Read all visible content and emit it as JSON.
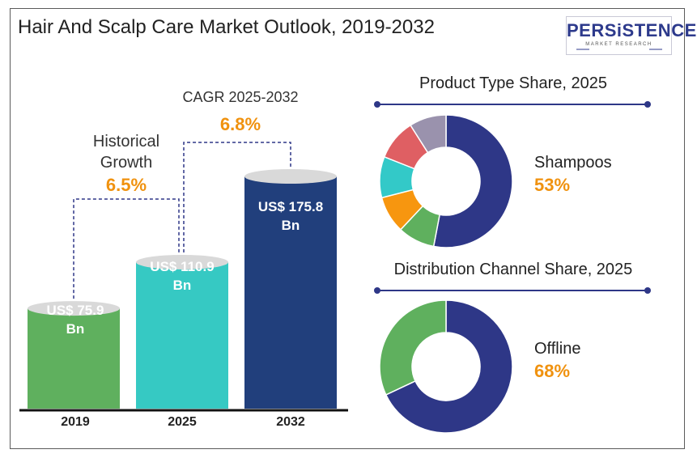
{
  "title": "Hair And Scalp Care Market Outlook, 2019-2032",
  "logo": {
    "main": "PERSiSTENCE",
    "sub": "MARKET RESEARCH"
  },
  "colors": {
    "accent": "#f0920f",
    "navy": "#2e3787",
    "green": "#5fb05e",
    "teal": "#36c9c3",
    "dark_blue": "#213f7c"
  },
  "chart_data": [
    {
      "type": "bar",
      "categories": [
        "2019",
        "2025",
        "2032"
      ],
      "values": [
        75.9,
        110.9,
        175.8
      ],
      "value_labels": [
        "US$ 75.9 Bn",
        "US$ 110.9 Bn",
        "US$ 175.8 Bn"
      ],
      "value_label_lines": [
        [
          "US$ 75.9",
          "Bn"
        ],
        [
          "US$ 110.9",
          "Bn"
        ],
        [
          "US$ 175.8",
          "Bn"
        ]
      ],
      "annotations": {
        "historical": {
          "label_lines": [
            "Historical",
            "Growth"
          ],
          "value": "6.5%"
        },
        "cagr": {
          "label": "CAGR 2025-2032",
          "value": "6.8%"
        }
      }
    },
    {
      "type": "pie",
      "title": "Product Type Share, 2025",
      "highlight": {
        "label": "Shampoos",
        "value": "53%"
      },
      "slices": [
        {
          "value": 53,
          "color": "#2e3787"
        },
        {
          "value": 9,
          "color": "#5fb05e"
        },
        {
          "value": 9,
          "color": "#f7960f"
        },
        {
          "value": 10,
          "color": "#33c9c8"
        },
        {
          "value": 10,
          "color": "#df5f63"
        },
        {
          "value": 9,
          "color": "#9a92ad"
        }
      ]
    },
    {
      "type": "pie",
      "title": "Distribution Channel Share, 2025",
      "highlight": {
        "label": "Offline",
        "value": "68%"
      },
      "slices": [
        {
          "value": 68,
          "color": "#2e3787"
        },
        {
          "value": 32,
          "color": "#5fb05e"
        }
      ]
    }
  ]
}
